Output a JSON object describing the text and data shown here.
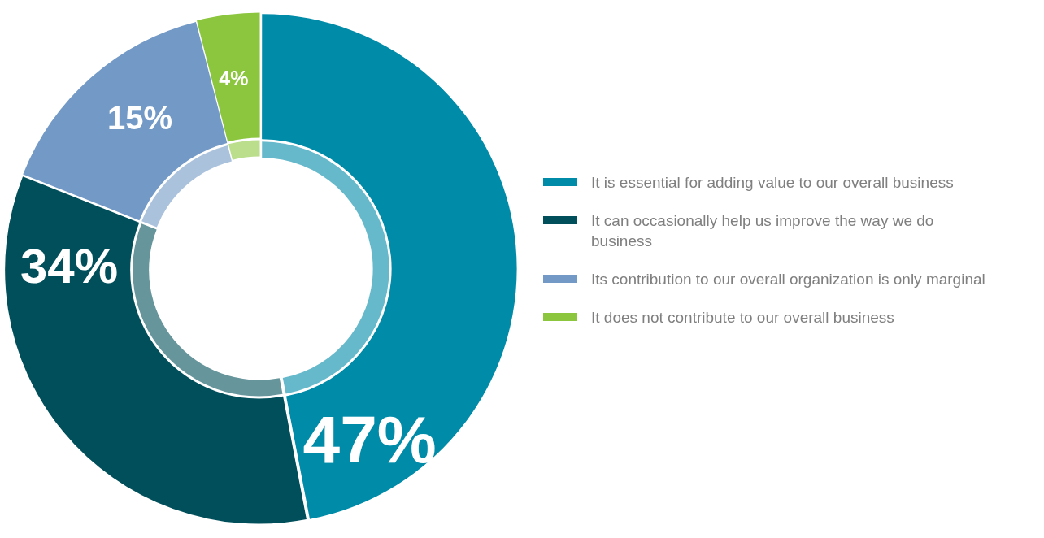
{
  "chart_data": {
    "type": "donut",
    "categories": [
      "It is essential for adding value to our overall business",
      "It can occasionally help us improve the way we do business",
      "Its contribution to our overall organization is only marginal",
      "It does not contribute to our overall business"
    ],
    "series": [
      {
        "values": [
          47,
          34,
          15,
          4
        ],
        "colors": [
          "#008ba8",
          "#004f5a",
          "#7399c6",
          "#8cc63f"
        ],
        "value_labels": [
          "47%",
          "34%",
          "15%",
          "4%"
        ]
      },
      {
        "values": [
          47,
          34,
          15,
          4
        ],
        "colors": [
          "#66b9cb",
          "#66959c",
          "#abc2dd",
          "#bade8c"
        ]
      }
    ],
    "legend": "right"
  }
}
